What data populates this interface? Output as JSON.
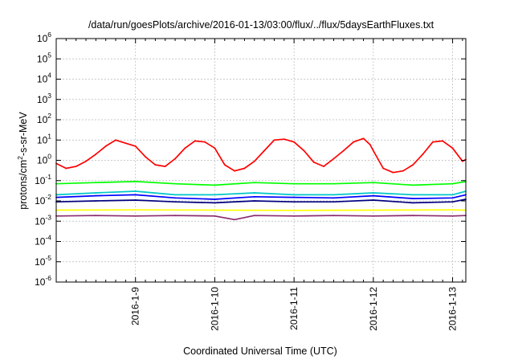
{
  "chart_data": {
    "type": "line",
    "title": "/data/run/goesPlots/archive/2016-01-13/03:00/flux/../flux/5daysEarthFluxes.txt",
    "xlabel": "Coordinated Universal Time (UTC)",
    "ylabel": {
      "base": "protons/cm",
      "sup": "2",
      "rest": "-s-sr-MeV"
    },
    "x_scale": "time",
    "y_scale": "log",
    "xlim": [
      "2016-01-08T00:00",
      "2016-01-13T04:00"
    ],
    "ylim": [
      1e-06,
      1000000.0
    ],
    "grid": true,
    "x_ticks": [
      "2016-1-9",
      "2016-1-10",
      "2016-1-11",
      "2016-1-12",
      "2016-1-13"
    ],
    "y_ticks": [
      {
        "base": "10",
        "exp": "-6",
        "value": 1e-06
      },
      {
        "base": "10",
        "exp": "-5",
        "value": 1e-05
      },
      {
        "base": "10",
        "exp": "-4",
        "value": 0.0001
      },
      {
        "base": "10",
        "exp": "-3",
        "value": 0.001
      },
      {
        "base": "10",
        "exp": "-2",
        "value": 0.01
      },
      {
        "base": "10",
        "exp": "-1",
        "value": 0.1
      },
      {
        "base": "10",
        "exp": "0",
        "value": 1
      },
      {
        "base": "10",
        "exp": "1",
        "value": 10
      },
      {
        "base": "10",
        "exp": "2",
        "value": 100
      },
      {
        "base": "10",
        "exp": "3",
        "value": 1000
      },
      {
        "base": "10",
        "exp": "4",
        "value": 10000
      },
      {
        "base": "10",
        "exp": "5",
        "value": 100000
      },
      {
        "base": "10",
        "exp": "6",
        "value": 1000000
      }
    ],
    "series": [
      {
        "color": "#ff0000",
        "x": [
          "2016-01-08T00:00",
          "2016-01-08T03:00",
          "2016-01-08T06:00",
          "2016-01-08T09:00",
          "2016-01-08T12:00",
          "2016-01-08T15:00",
          "2016-01-08T18:00",
          "2016-01-08T21:00",
          "2016-01-09T00:00",
          "2016-01-09T03:00",
          "2016-01-09T06:00",
          "2016-01-09T09:00",
          "2016-01-09T12:00",
          "2016-01-09T15:00",
          "2016-01-09T18:00",
          "2016-01-09T21:00",
          "2016-01-10T00:00",
          "2016-01-10T03:00",
          "2016-01-10T06:00",
          "2016-01-10T09:00",
          "2016-01-10T12:00",
          "2016-01-10T15:00",
          "2016-01-10T18:00",
          "2016-01-10T21:00",
          "2016-01-11T00:00",
          "2016-01-11T03:00",
          "2016-01-11T06:00",
          "2016-01-11T09:00",
          "2016-01-11T12:00",
          "2016-01-11T15:00",
          "2016-01-11T18:00",
          "2016-01-11T21:00",
          "2016-01-11T23:00",
          "2016-01-12T00:00",
          "2016-01-12T03:00",
          "2016-01-12T06:00",
          "2016-01-12T09:00",
          "2016-01-12T12:00",
          "2016-01-12T15:00",
          "2016-01-12T18:00",
          "2016-01-12T21:00",
          "2016-01-13T00:00",
          "2016-01-13T03:00",
          "2016-01-13T04:00"
        ],
        "y": [
          0.7,
          0.4,
          0.5,
          0.9,
          2,
          5,
          10,
          7,
          5,
          1.5,
          0.6,
          0.5,
          1.2,
          4,
          9,
          8,
          4,
          0.6,
          0.3,
          0.4,
          0.9,
          3,
          10,
          11,
          8,
          3,
          0.8,
          0.5,
          1.2,
          3,
          8,
          12,
          6,
          3,
          0.4,
          0.25,
          0.3,
          0.6,
          2,
          8,
          9,
          4,
          0.9,
          1.1
        ]
      },
      {
        "color": "#00ff00",
        "x": [
          "2016-01-08T00:00",
          "2016-01-08T12:00",
          "2016-01-09T00:00",
          "2016-01-09T12:00",
          "2016-01-10T00:00",
          "2016-01-10T12:00",
          "2016-01-11T00:00",
          "2016-01-11T12:00",
          "2016-01-12T00:00",
          "2016-01-12T12:00",
          "2016-01-13T00:00",
          "2016-01-13T04:00"
        ],
        "y": [
          0.07,
          0.08,
          0.09,
          0.07,
          0.06,
          0.08,
          0.07,
          0.07,
          0.08,
          0.06,
          0.07,
          0.09
        ]
      },
      {
        "color": "#00c8c8",
        "x": [
          "2016-01-08T00:00",
          "2016-01-08T12:00",
          "2016-01-09T00:00",
          "2016-01-09T12:00",
          "2016-01-10T00:00",
          "2016-01-10T12:00",
          "2016-01-11T00:00",
          "2016-01-11T12:00",
          "2016-01-12T00:00",
          "2016-01-12T12:00",
          "2016-01-13T00:00",
          "2016-01-13T04:00"
        ],
        "y": [
          0.02,
          0.025,
          0.03,
          0.02,
          0.02,
          0.025,
          0.02,
          0.02,
          0.025,
          0.02,
          0.02,
          0.03
        ]
      },
      {
        "color": "#0000ff",
        "x": [
          "2016-01-08T00:00",
          "2016-01-08T12:00",
          "2016-01-09T00:00",
          "2016-01-09T12:00",
          "2016-01-10T00:00",
          "2016-01-10T12:00",
          "2016-01-11T00:00",
          "2016-01-11T12:00",
          "2016-01-12T00:00",
          "2016-01-12T12:00",
          "2016-01-13T00:00",
          "2016-01-13T04:00"
        ],
        "y": [
          0.015,
          0.018,
          0.02,
          0.014,
          0.012,
          0.016,
          0.015,
          0.014,
          0.018,
          0.013,
          0.014,
          0.02
        ]
      },
      {
        "color": "#000080",
        "x": [
          "2016-01-08T00:00",
          "2016-01-08T12:00",
          "2016-01-09T00:00",
          "2016-01-09T12:00",
          "2016-01-10T00:00",
          "2016-01-10T12:00",
          "2016-01-11T00:00",
          "2016-01-11T12:00",
          "2016-01-12T00:00",
          "2016-01-12T12:00",
          "2016-01-13T00:00",
          "2016-01-13T04:00"
        ],
        "y": [
          0.009,
          0.01,
          0.011,
          0.009,
          0.008,
          0.01,
          0.009,
          0.009,
          0.011,
          0.008,
          0.009,
          0.012
        ]
      },
      {
        "color": "#ffff00",
        "x": [
          "2016-01-08T00:00",
          "2016-01-09T00:00",
          "2016-01-10T00:00",
          "2016-01-11T00:00",
          "2016-01-12T00:00",
          "2016-01-13T00:00",
          "2016-01-13T04:00"
        ],
        "y": [
          0.0035,
          0.0036,
          0.0035,
          0.0034,
          0.0035,
          0.0036,
          0.0035
        ]
      },
      {
        "color": "#8b2a6e",
        "x": [
          "2016-01-08T00:00",
          "2016-01-08T12:00",
          "2016-01-09T00:00",
          "2016-01-09T12:00",
          "2016-01-10T00:00",
          "2016-01-10T06:00",
          "2016-01-10T12:00",
          "2016-01-11T00:00",
          "2016-01-11T12:00",
          "2016-01-12T00:00",
          "2016-01-12T12:00",
          "2016-01-13T00:00",
          "2016-01-13T04:00"
        ],
        "y": [
          0.0018,
          0.0019,
          0.0018,
          0.0019,
          0.0018,
          0.0012,
          0.0019,
          0.0018,
          0.0019,
          0.0018,
          0.0019,
          0.0018,
          0.0019
        ]
      }
    ]
  }
}
